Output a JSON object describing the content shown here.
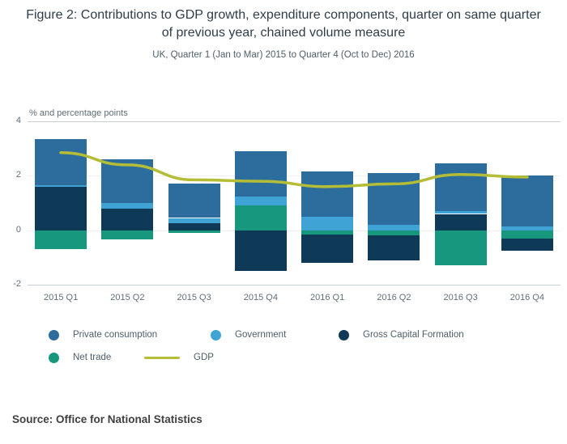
{
  "header": {
    "title": "Figure 2: Contributions to GDP growth, expenditure components, quarter on same quarter of previous year, chained volume measure",
    "subtitle": "UK, Quarter 1 (Jan to Mar) 2015 to Quarter 4 (Oct to Dec) 2016"
  },
  "chart_data": {
    "type": "bar",
    "stacked": true,
    "title": "Figure 2: Contributions to GDP growth, expenditure components, quarter on same quarter of previous year, chained volume measure",
    "subtitle": "UK, Quarter 1 (Jan to Mar) 2015 to Quarter 4 (Oct to Dec) 2016",
    "ylabel": "% and percentage points",
    "xlabel": "",
    "ylim": [
      -2,
      4
    ],
    "yticks": [
      4,
      2,
      0,
      -2
    ],
    "grid": true,
    "legend_position": "bottom",
    "categories": [
      "2015 Q1",
      "2015 Q2",
      "2015 Q3",
      "2015 Q4",
      "2016 Q1",
      "2016 Q2",
      "2016 Q3",
      "2016 Q4"
    ],
    "series": [
      {
        "name": "Private consumption",
        "color": "#2d6d9e",
        "values": [
          1.7,
          1.6,
          1.25,
          1.65,
          1.65,
          1.9,
          1.75,
          1.85
        ]
      },
      {
        "name": "Government",
        "color": "#3fa3d6",
        "values": [
          0.05,
          0.2,
          0.2,
          0.35,
          0.5,
          0.2,
          0.1,
          0.15
        ]
      },
      {
        "name": "Gross Capital Formation",
        "color": "#0e3a57",
        "values": [
          1.6,
          0.8,
          0.25,
          -1.5,
          -1.05,
          -0.9,
          0.6,
          -0.45
        ]
      },
      {
        "name": "Net trade",
        "color": "#17977e",
        "values": [
          -0.7,
          -0.35,
          -0.1,
          0.9,
          -0.15,
          -0.2,
          -1.3,
          -0.3
        ]
      }
    ],
    "line_series": {
      "name": "GDP",
      "color": "#b4bd35",
      "values": [
        2.85,
        2.4,
        1.85,
        1.8,
        1.6,
        1.7,
        2.05,
        1.95
      ]
    }
  },
  "footer": {
    "source": "Source: Office for National Statistics"
  }
}
